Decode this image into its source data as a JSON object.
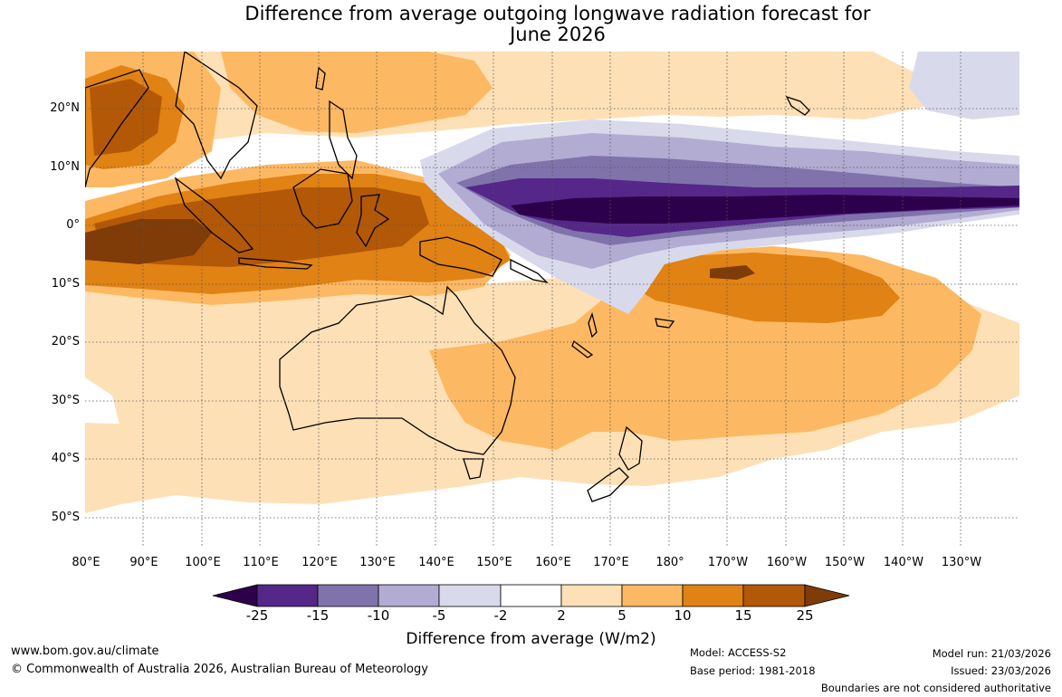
{
  "title": {
    "line1": "Difference from average outgoing longwave radiation forecast for",
    "line2": "June 2026"
  },
  "map": {
    "lat_labels": [
      "20°N",
      "10°N",
      "0°",
      "10°S",
      "20°S",
      "30°S",
      "40°S",
      "50°S"
    ],
    "lon_labels": [
      "80°E",
      "90°E",
      "100°E",
      "110°E",
      "120°E",
      "130°E",
      "140°E",
      "150°E",
      "160°E",
      "170°E",
      "180°",
      "170°W",
      "160°W",
      "150°W",
      "140°W",
      "130°W"
    ]
  },
  "legend": {
    "ticks": [
      "-25",
      "-15",
      "-10",
      "-5",
      "-2",
      "2",
      "5",
      "10",
      "15",
      "25"
    ],
    "colors": [
      "#2d004b",
      "#542788",
      "#8073ac",
      "#b2abd2",
      "#d8daeb",
      "#ffffff",
      "#fee0b6",
      "#fdb863",
      "#e08214",
      "#b35806",
      "#7f3b08"
    ],
    "caption": "Difference from average (W/m2)"
  },
  "footer": {
    "website": "www.bom.gov.au/climate",
    "copyright": "© Commonwealth of Australia 2026, Australian Bureau of Meteorology",
    "model": "Model: ACCESS-S2",
    "base_period": "Base period: 1981-2018",
    "model_run": "Model run: 21/03/2026",
    "issued": "Issued: 23/03/2026",
    "disclaimer": "Boundaries are not considered authoritative"
  }
}
